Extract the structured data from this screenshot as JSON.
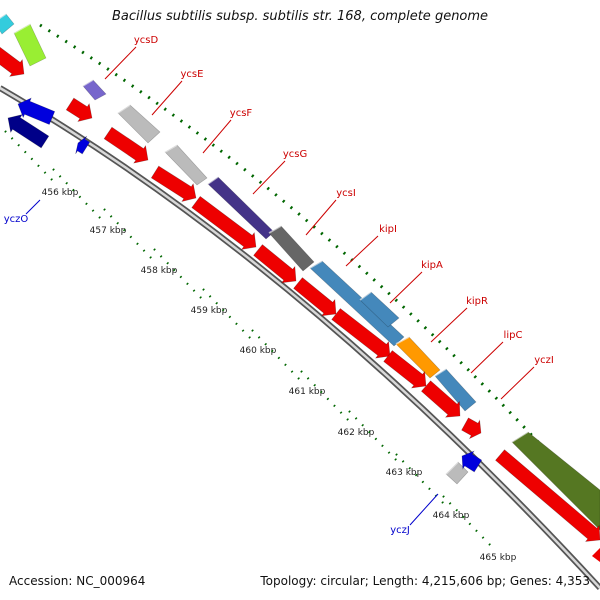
{
  "title": "Bacillus subtilis subsp. subtilis str. 168, complete genome",
  "accession_text": "Accession: NC_000964",
  "summary_text": "Topology: circular; Length: 4,215,606 bp; Genes: 4,353",
  "colors": {
    "forward_label": "#cc0000",
    "reverse_label": "#0000cc",
    "cds_forward": "#ee0000",
    "cds_reverse": "#0000dd",
    "backbone": "#888888",
    "ticks": "#006600"
  },
  "scale_ticks": [
    {
      "label": "456 kbp",
      "kbp": 456
    },
    {
      "label": "457 kbp",
      "kbp": 457
    },
    {
      "label": "458 kbp",
      "kbp": 458
    },
    {
      "label": "459 kbp",
      "kbp": 459
    },
    {
      "label": "460 kbp",
      "kbp": 460
    },
    {
      "label": "461 kbp",
      "kbp": 461
    },
    {
      "label": "462 kbp",
      "kbp": 462
    },
    {
      "label": "463 kbp",
      "kbp": 463
    },
    {
      "label": "464 kbp",
      "kbp": 464
    },
    {
      "label": "465 kbp",
      "kbp": 465
    }
  ],
  "gene_labels_forward": [
    "ycsD",
    "ycsE",
    "ycsF",
    "ycsG",
    "ycsI",
    "kipI",
    "kipA",
    "kipR",
    "lipC",
    "yczI"
  ],
  "gene_labels_reverse": [
    "yczO",
    "yczJ"
  ],
  "cog_features": [
    {
      "gene": "prev-1",
      "color": "#33ccdd"
    },
    {
      "gene": "prev-2",
      "color": "#99ee33"
    },
    {
      "gene": "ycsD",
      "color": "#7766cc"
    },
    {
      "gene": "ycsE",
      "color": "#bbbbbb"
    },
    {
      "gene": "ycsF",
      "color": "#bbbbbb"
    },
    {
      "gene": "ycsG",
      "color": "#443388"
    },
    {
      "gene": "ycsI",
      "color": "#666666"
    },
    {
      "gene": "kipI",
      "color": "#4488bb"
    },
    {
      "gene": "kipA",
      "color": "#4488bb"
    },
    {
      "gene": "kipR",
      "color": "#ff9900"
    },
    {
      "gene": "lipC",
      "color": "#4488bb"
    },
    {
      "gene": "yczJ",
      "color": "#bbbbbb"
    },
    {
      "gene": "next",
      "color": "#557722"
    }
  ]
}
